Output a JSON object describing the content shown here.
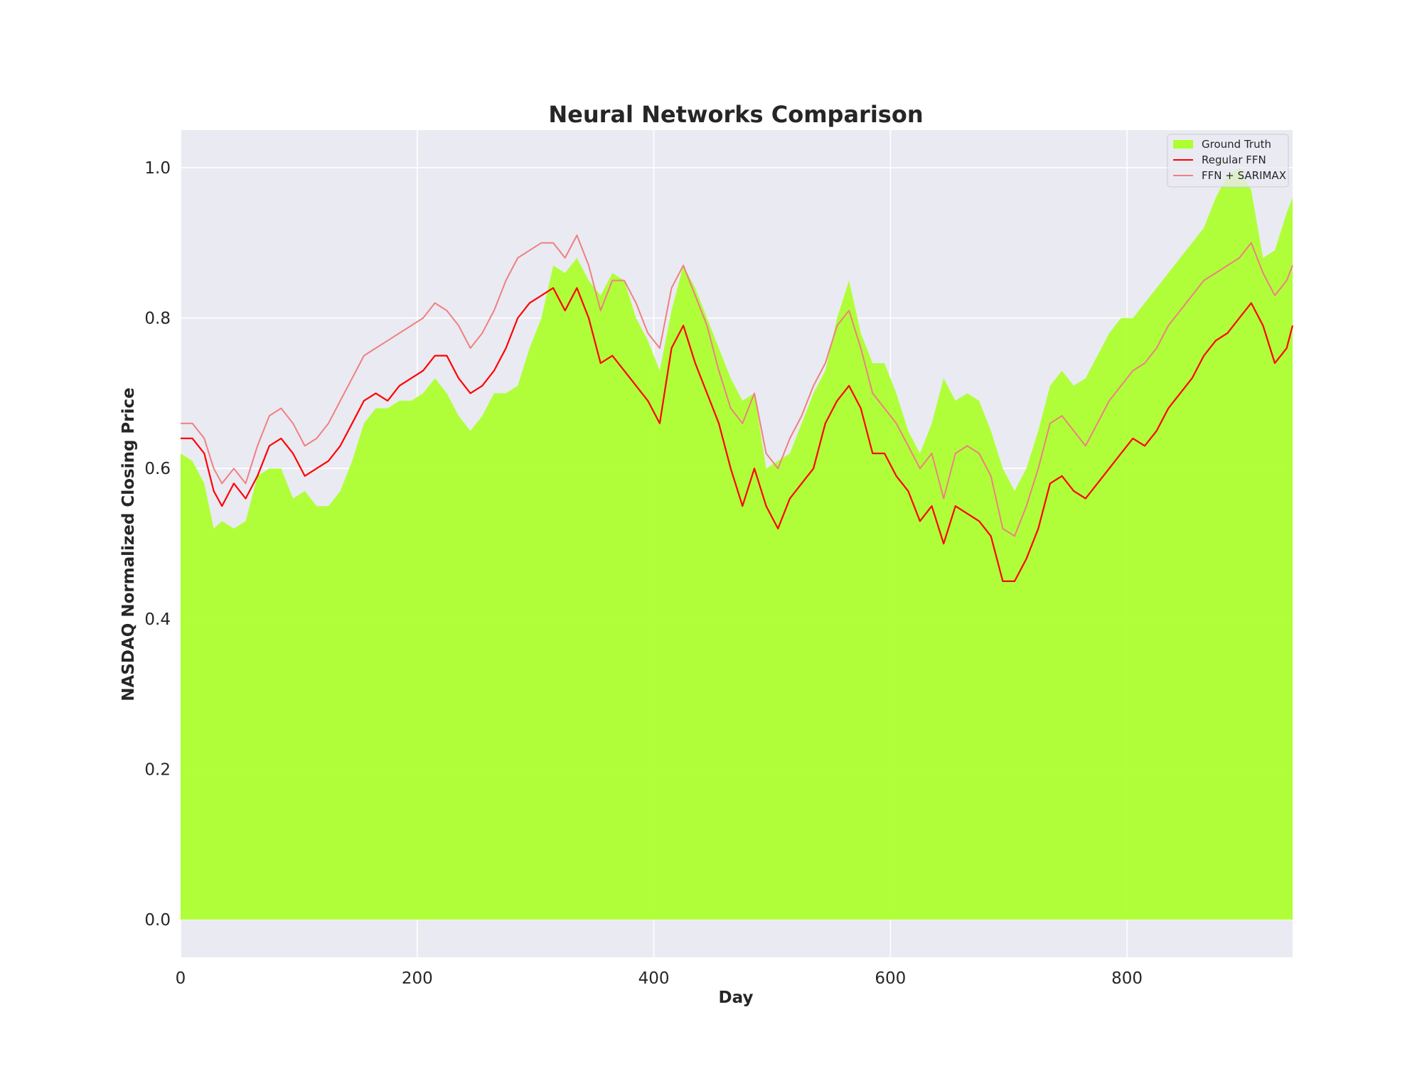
{
  "chart_data": {
    "type": "area",
    "title": "Neural Networks Comparison",
    "xlabel": "Day",
    "ylabel": "NASDAQ Normalized Closing Price",
    "xlim": [
      0,
      940
    ],
    "ylim": [
      -0.05,
      1.05
    ],
    "xticks": [
      0,
      200,
      400,
      600,
      800
    ],
    "yticks": [
      0.0,
      0.2,
      0.4,
      0.6,
      0.8,
      1.0
    ],
    "xtick_labels": [
      "0",
      "200",
      "400",
      "600",
      "800"
    ],
    "ytick_labels": [
      "0.0",
      "0.2",
      "0.4",
      "0.6",
      "0.8",
      "1.0"
    ],
    "grid": true,
    "legend_position": "top-right",
    "colors": {
      "background": "#eaeaf2",
      "grid": "#ffffff",
      "ground_truth": "#adff2f",
      "regular_ffn": "#ff0000",
      "ffn_sarimax": "#f08080"
    },
    "series": [
      {
        "name": "Ground Truth",
        "kind": "area",
        "x": [
          0,
          10,
          20,
          28,
          35,
          45,
          55,
          65,
          75,
          85,
          95,
          105,
          115,
          125,
          135,
          145,
          155,
          165,
          175,
          185,
          195,
          205,
          215,
          225,
          235,
          245,
          255,
          265,
          275,
          285,
          295,
          305,
          315,
          325,
          335,
          345,
          355,
          365,
          375,
          385,
          395,
          405,
          415,
          425,
          435,
          445,
          455,
          465,
          475,
          485,
          495,
          505,
          515,
          525,
          535,
          545,
          555,
          565,
          575,
          585,
          595,
          605,
          615,
          625,
          635,
          645,
          655,
          665,
          675,
          685,
          695,
          705,
          715,
          725,
          735,
          745,
          755,
          765,
          775,
          785,
          795,
          805,
          815,
          825,
          835,
          845,
          855,
          865,
          875,
          885,
          895,
          905,
          915,
          925,
          935,
          940
        ],
        "y": [
          0.62,
          0.61,
          0.58,
          0.52,
          0.53,
          0.52,
          0.53,
          0.59,
          0.6,
          0.6,
          0.56,
          0.57,
          0.55,
          0.55,
          0.57,
          0.61,
          0.66,
          0.68,
          0.68,
          0.69,
          0.69,
          0.7,
          0.72,
          0.7,
          0.67,
          0.65,
          0.67,
          0.7,
          0.7,
          0.71,
          0.76,
          0.8,
          0.87,
          0.86,
          0.88,
          0.85,
          0.83,
          0.86,
          0.85,
          0.8,
          0.77,
          0.73,
          0.81,
          0.87,
          0.84,
          0.8,
          0.76,
          0.72,
          0.69,
          0.7,
          0.6,
          0.61,
          0.62,
          0.66,
          0.7,
          0.73,
          0.8,
          0.85,
          0.78,
          0.74,
          0.74,
          0.7,
          0.65,
          0.62,
          0.66,
          0.72,
          0.69,
          0.7,
          0.69,
          0.65,
          0.6,
          0.57,
          0.6,
          0.65,
          0.71,
          0.73,
          0.71,
          0.72,
          0.75,
          0.78,
          0.8,
          0.8,
          0.82,
          0.84,
          0.86,
          0.88,
          0.9,
          0.92,
          0.96,
          0.99,
          1.0,
          0.97,
          0.88,
          0.89,
          0.94,
          0.96
        ]
      },
      {
        "name": "Regular FFN",
        "kind": "line",
        "x": [
          0,
          10,
          20,
          28,
          35,
          45,
          55,
          65,
          75,
          85,
          95,
          105,
          115,
          125,
          135,
          145,
          155,
          165,
          175,
          185,
          195,
          205,
          215,
          225,
          235,
          245,
          255,
          265,
          275,
          285,
          295,
          305,
          315,
          325,
          335,
          345,
          355,
          365,
          375,
          385,
          395,
          405,
          415,
          425,
          435,
          445,
          455,
          465,
          475,
          485,
          495,
          505,
          515,
          525,
          535,
          545,
          555,
          565,
          575,
          585,
          595,
          605,
          615,
          625,
          635,
          645,
          655,
          665,
          675,
          685,
          695,
          705,
          715,
          725,
          735,
          745,
          755,
          765,
          775,
          785,
          795,
          805,
          815,
          825,
          835,
          845,
          855,
          865,
          875,
          885,
          895,
          905,
          915,
          925,
          935,
          940
        ],
        "y": [
          0.64,
          0.64,
          0.62,
          0.57,
          0.55,
          0.58,
          0.56,
          0.59,
          0.63,
          0.64,
          0.62,
          0.59,
          0.6,
          0.61,
          0.63,
          0.66,
          0.69,
          0.7,
          0.69,
          0.71,
          0.72,
          0.73,
          0.75,
          0.75,
          0.72,
          0.7,
          0.71,
          0.73,
          0.76,
          0.8,
          0.82,
          0.83,
          0.84,
          0.81,
          0.84,
          0.8,
          0.74,
          0.75,
          0.73,
          0.71,
          0.69,
          0.66,
          0.76,
          0.79,
          0.74,
          0.7,
          0.66,
          0.6,
          0.55,
          0.6,
          0.55,
          0.52,
          0.56,
          0.58,
          0.6,
          0.66,
          0.69,
          0.71,
          0.68,
          0.62,
          0.62,
          0.59,
          0.57,
          0.53,
          0.55,
          0.5,
          0.55,
          0.54,
          0.53,
          0.51,
          0.45,
          0.45,
          0.48,
          0.52,
          0.58,
          0.59,
          0.57,
          0.56,
          0.58,
          0.6,
          0.62,
          0.64,
          0.63,
          0.65,
          0.68,
          0.7,
          0.72,
          0.75,
          0.77,
          0.78,
          0.8,
          0.82,
          0.79,
          0.74,
          0.76,
          0.79
        ]
      },
      {
        "name": "FFN + SARIMAX",
        "kind": "line",
        "x": [
          0,
          10,
          20,
          28,
          35,
          45,
          55,
          65,
          75,
          85,
          95,
          105,
          115,
          125,
          135,
          145,
          155,
          165,
          175,
          185,
          195,
          205,
          215,
          225,
          235,
          245,
          255,
          265,
          275,
          285,
          295,
          305,
          315,
          325,
          335,
          345,
          355,
          365,
          375,
          385,
          395,
          405,
          415,
          425,
          435,
          445,
          455,
          465,
          475,
          485,
          495,
          505,
          515,
          525,
          535,
          545,
          555,
          565,
          575,
          585,
          595,
          605,
          615,
          625,
          635,
          645,
          655,
          665,
          675,
          685,
          695,
          705,
          715,
          725,
          735,
          745,
          755,
          765,
          775,
          785,
          795,
          805,
          815,
          825,
          835,
          845,
          855,
          865,
          875,
          885,
          895,
          905,
          915,
          925,
          935,
          940
        ],
        "y": [
          0.66,
          0.66,
          0.64,
          0.6,
          0.58,
          0.6,
          0.58,
          0.63,
          0.67,
          0.68,
          0.66,
          0.63,
          0.64,
          0.66,
          0.69,
          0.72,
          0.75,
          0.76,
          0.77,
          0.78,
          0.79,
          0.8,
          0.82,
          0.81,
          0.79,
          0.76,
          0.78,
          0.81,
          0.85,
          0.88,
          0.89,
          0.9,
          0.9,
          0.88,
          0.91,
          0.87,
          0.81,
          0.85,
          0.85,
          0.82,
          0.78,
          0.76,
          0.84,
          0.87,
          0.83,
          0.79,
          0.73,
          0.68,
          0.66,
          0.7,
          0.62,
          0.6,
          0.64,
          0.67,
          0.71,
          0.74,
          0.79,
          0.81,
          0.76,
          0.7,
          0.68,
          0.66,
          0.63,
          0.6,
          0.62,
          0.56,
          0.62,
          0.63,
          0.62,
          0.59,
          0.52,
          0.51,
          0.55,
          0.6,
          0.66,
          0.67,
          0.65,
          0.63,
          0.66,
          0.69,
          0.71,
          0.73,
          0.74,
          0.76,
          0.79,
          0.81,
          0.83,
          0.85,
          0.86,
          0.87,
          0.88,
          0.9,
          0.86,
          0.83,
          0.85,
          0.87
        ]
      }
    ]
  }
}
